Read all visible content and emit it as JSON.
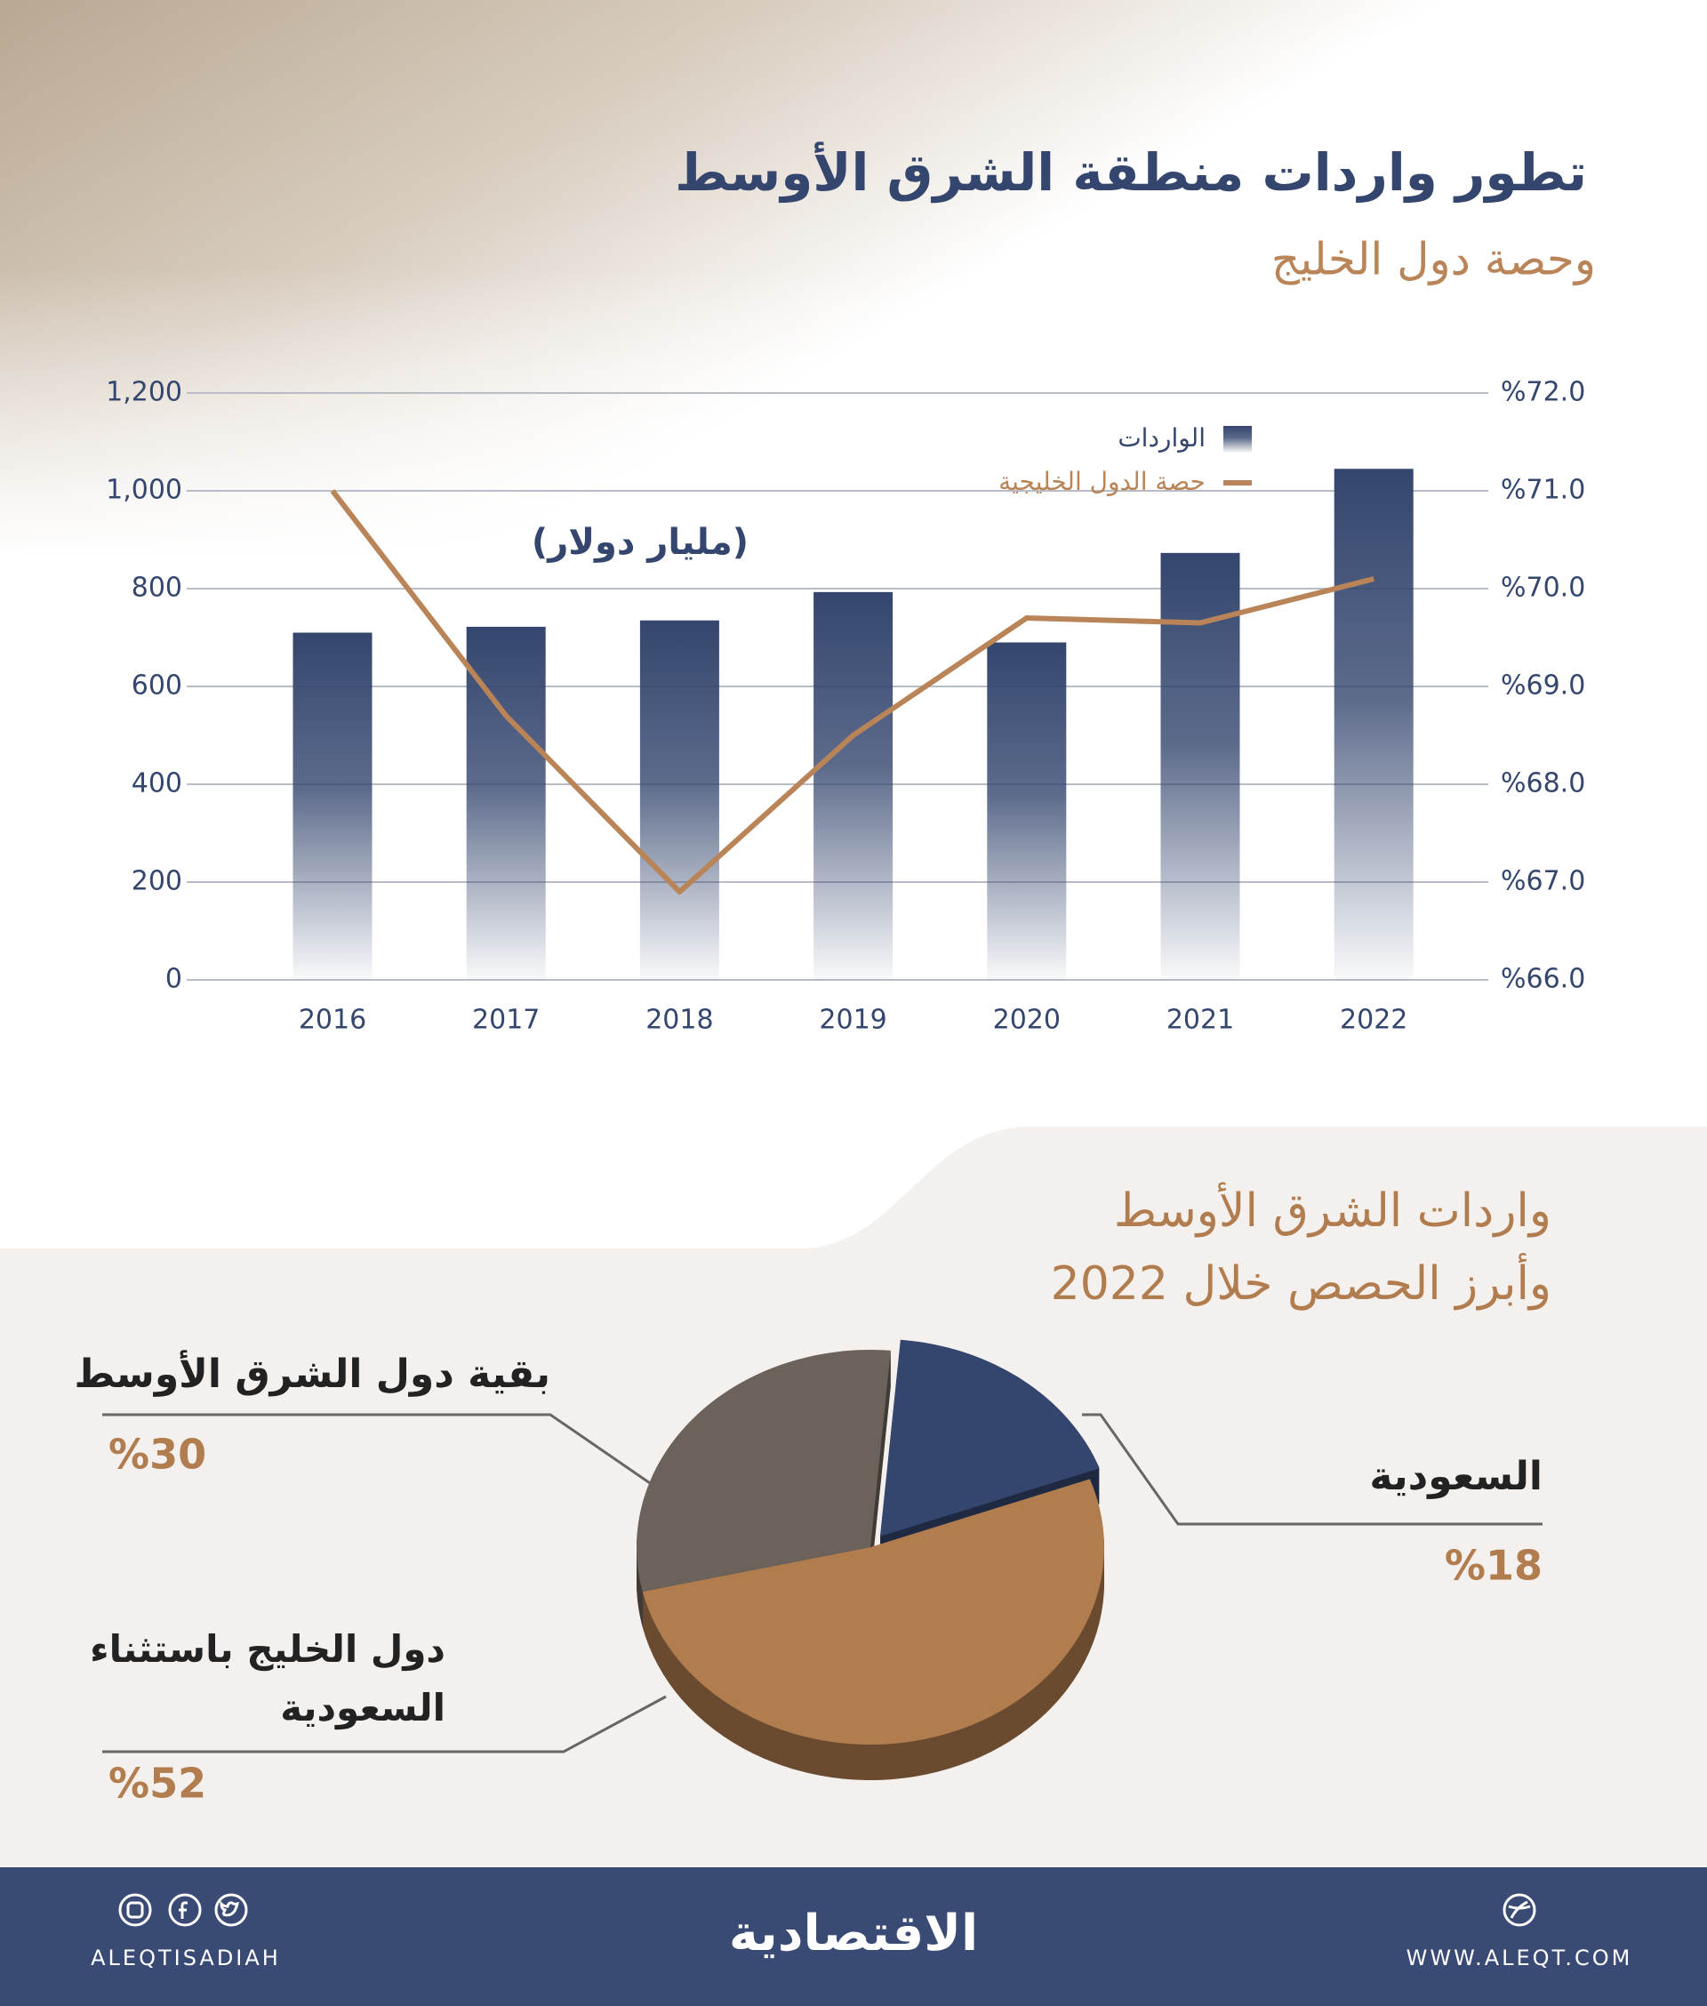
{
  "chart_data": [
    {
      "type": "bar",
      "title": "تطور واردات منطقة الشرق الأوسط",
      "subtitle": "وحصة دول الخليج",
      "annotation": "(مليار دولار)",
      "categories": [
        "2016",
        "2017",
        "2018",
        "2019",
        "2020",
        "2021",
        "2022"
      ],
      "series": [
        {
          "name": "الواردات",
          "type": "bar",
          "color": "#34466e",
          "values": [
            710,
            722,
            735,
            793,
            690,
            873,
            1045
          ]
        },
        {
          "name": "حصة الدول الخليجية",
          "type": "line",
          "axis": "y2",
          "color": "#b98457",
          "values": [
            71.0,
            68.7,
            66.9,
            68.5,
            69.7,
            69.65,
            70.1
          ]
        }
      ],
      "ylim": [
        0,
        1200
      ],
      "yticks": [
        0,
        200,
        400,
        600,
        800,
        {
          "value": 1000,
          "label": "1,000"
        },
        {
          "value": 1200,
          "label": "1,200"
        }
      ],
      "y2lim": [
        66,
        72
      ],
      "y2ticks": [
        {
          "value": 66,
          "label": "%66.0"
        },
        {
          "value": 67,
          "label": "%67.0"
        },
        {
          "value": 68,
          "label": "%68.0"
        },
        {
          "value": 69,
          "label": "%69.0"
        },
        {
          "value": 70,
          "label": "%70.0"
        },
        {
          "value": 71,
          "label": "%71.0"
        },
        {
          "value": 72,
          "label": "%72.0"
        }
      ],
      "grid": true
    },
    {
      "type": "pie",
      "title": "واردات الشرق الأوسط",
      "subtitle": "وأبرز الحصص خلال 2022",
      "categories": [
        "السعودية",
        "دول الخليج باستثناء السعودية",
        "بقية دول الشرق الأوسط"
      ],
      "values": [
        18,
        52,
        30
      ],
      "value_labels": [
        "%18",
        "%52",
        "%30"
      ],
      "colors": [
        "#34466e",
        "#b17d4f",
        "#6b625b"
      ]
    }
  ],
  "footer": {
    "logo": "الاقتصادية",
    "handle": "ALEQTISADIAH",
    "website": "WWW.ALEQT.COM"
  }
}
